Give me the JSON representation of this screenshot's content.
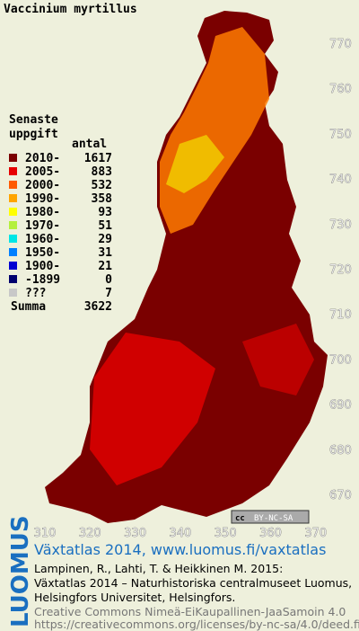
{
  "map": {
    "title": "Vaccinium myrtillus",
    "legend": {
      "heading": [
        "Senaste",
        "uppgift"
      ],
      "count_header": "antal",
      "items": [
        {
          "label": "2010-",
          "count": 1617,
          "color": "#7a0000"
        },
        {
          "label": "2005-",
          "count": 883,
          "color": "#e60000"
        },
        {
          "label": "2000-",
          "count": 532,
          "color": "#ff5a00"
        },
        {
          "label": "1990-",
          "count": 358,
          "color": "#ffa500"
        },
        {
          "label": "1980-",
          "count": 93,
          "color": "#ffff00"
        },
        {
          "label": "1970-",
          "count": 51,
          "color": "#b4f03c"
        },
        {
          "label": "1960-",
          "count": 29,
          "color": "#00e6e6"
        },
        {
          "label": "1950-",
          "count": 31,
          "color": "#0080ff"
        },
        {
          "label": "1900-",
          "count": 21,
          "color": "#0000d2"
        },
        {
          "label": "-1899",
          "count": 0,
          "color": "#00006e"
        },
        {
          "label": "???",
          "count": 7,
          "color": "#c8c8c8"
        }
      ],
      "total_label": "Summa",
      "total": 3622
    },
    "yticks": [
      770,
      760,
      750,
      740,
      730,
      720,
      710,
      700,
      690,
      680,
      670
    ],
    "xticks": [
      310,
      320,
      330,
      340,
      350,
      360,
      370
    ],
    "license_badge": {
      "icon": "cc",
      "text": "BY-NC-SA"
    }
  },
  "footer": {
    "brand": "LUOMUS",
    "link": "Växtatlas 2014, www.luomus.fi/vaxtatlas",
    "citation": [
      "Lampinen, R., Lahti, T. & Heikkinen M. 2015:",
      "Växtatlas 2014 – Naturhistoriska centralmuseet Luomus,",
      "Helsingfors Universitet, Helsingfors."
    ],
    "license": [
      "Creative Commons Nimeä-EiKaupallinen-JaaSamoin 4.0",
      "https://creativecommons.org/licenses/by-nc-sa/4.0/deed.fi"
    ]
  }
}
